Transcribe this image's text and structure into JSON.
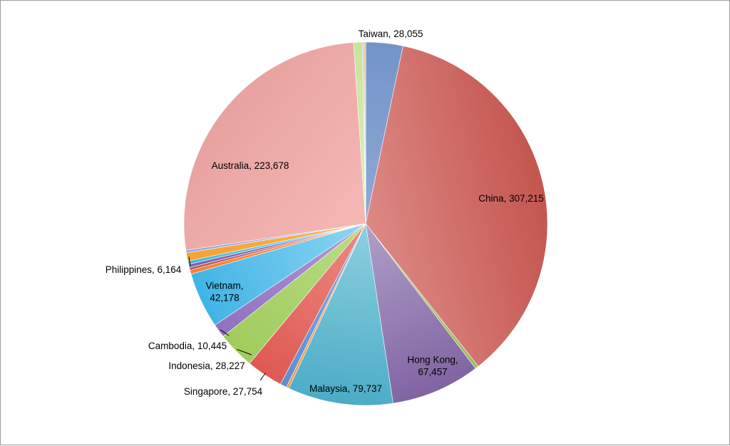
{
  "chart_data": {
    "type": "pie",
    "title": "",
    "slices": [
      {
        "name": "Taiwan",
        "value": 28055,
        "label_lines": [
          "Taiwan, 28,055"
        ],
        "color": "#8fa9d6",
        "color_dark": "#7394c9",
        "labeled": true
      },
      {
        "name": "China",
        "value": 307215,
        "label_lines": [
          "China, 307,215"
        ],
        "color": "#dd8985",
        "color_dark": "#c4554f",
        "labeled": true
      },
      {
        "name": "",
        "value": 2500,
        "label_lines": [],
        "color": "#b7cf7c",
        "color_dark": "#9bbb59",
        "labeled": false
      },
      {
        "name": "Hong Kong",
        "value": 67457,
        "label_lines": [
          "Hong Kong,",
          "67,457"
        ],
        "color": "#b0a0c8",
        "color_dark": "#8064a2",
        "labeled": true
      },
      {
        "name": "Malaysia",
        "value": 79737,
        "label_lines": [
          "Malaysia, 79,737"
        ],
        "color": "#8dd0df",
        "color_dark": "#4bacc6",
        "labeled": true
      },
      {
        "name": "",
        "value": 2000,
        "label_lines": [],
        "color": "#f8b36a",
        "color_dark": "#f79646",
        "labeled": false
      },
      {
        "name": "",
        "value": 5000,
        "label_lines": [],
        "color": "#8aaee0",
        "color_dark": "#5c8ed0",
        "labeled": false
      },
      {
        "name": "Singapore",
        "value": 27754,
        "label_lines": [
          "Singapore, 27,754"
        ],
        "color": "#ec8a85",
        "color_dark": "#de5a52",
        "labeled": true
      },
      {
        "name": "Indonesia",
        "value": 28227,
        "label_lines": [
          "Indonesia, 28,227"
        ],
        "color": "#b8dc86",
        "color_dark": "#a0cc5c",
        "labeled": true
      },
      {
        "name": "Cambodia",
        "value": 10445,
        "label_lines": [
          "Cambodia, 10,445"
        ],
        "color": "#b39ad6",
        "color_dark": "#9070c0",
        "labeled": true
      },
      {
        "name": "Vietnam",
        "value": 42178,
        "label_lines": [
          "Vietnam,",
          "42,178"
        ],
        "color": "#8ed5f2",
        "color_dark": "#40b4e6",
        "labeled": true
      },
      {
        "name": "",
        "value": 3000,
        "label_lines": [],
        "color": "#f7a46a",
        "color_dark": "#f08030",
        "labeled": false
      },
      {
        "name": "",
        "value": 2000,
        "label_lines": [],
        "color": "#d08a8a",
        "color_dark": "#c05050",
        "labeled": false
      },
      {
        "name": "",
        "value": 2500,
        "label_lines": [],
        "color": "#a08cc8",
        "color_dark": "#7860b0",
        "labeled": false
      },
      {
        "name": "",
        "value": 2500,
        "label_lines": [],
        "color": "#8cd8ea",
        "color_dark": "#40b8d8",
        "labeled": false
      },
      {
        "name": "Philippines",
        "value": 6164,
        "label_lines": [
          "Philippines, 6,164"
        ],
        "color": "#f8b45c",
        "color_dark": "#f7a030",
        "labeled": true
      },
      {
        "name": "",
        "value": 2000,
        "label_lines": [],
        "color": "#b4c4ec",
        "color_dark": "#90a8e0",
        "labeled": false
      },
      {
        "name": "Australia",
        "value": 223678,
        "label_lines": [
          "Australia, 223,678"
        ],
        "color": "#f5b9b5",
        "color_dark": "#e8a2a0",
        "labeled": true
      },
      {
        "name": "",
        "value": 6500,
        "label_lines": [],
        "color": "#dff0bc",
        "color_dark": "#c8e49a",
        "labeled": false
      },
      {
        "name": "",
        "value": 1300,
        "label_lines": [],
        "color": "#cfe4f7",
        "color_dark": "#a8ccf0",
        "labeled": false
      },
      {
        "name": "",
        "value": 1300,
        "label_lines": [],
        "color": "#f9d6a8",
        "color_dark": "#f4bc78",
        "labeled": false
      }
    ],
    "legend": "none",
    "start_angle_deg": 0,
    "direction": "clockwise"
  }
}
